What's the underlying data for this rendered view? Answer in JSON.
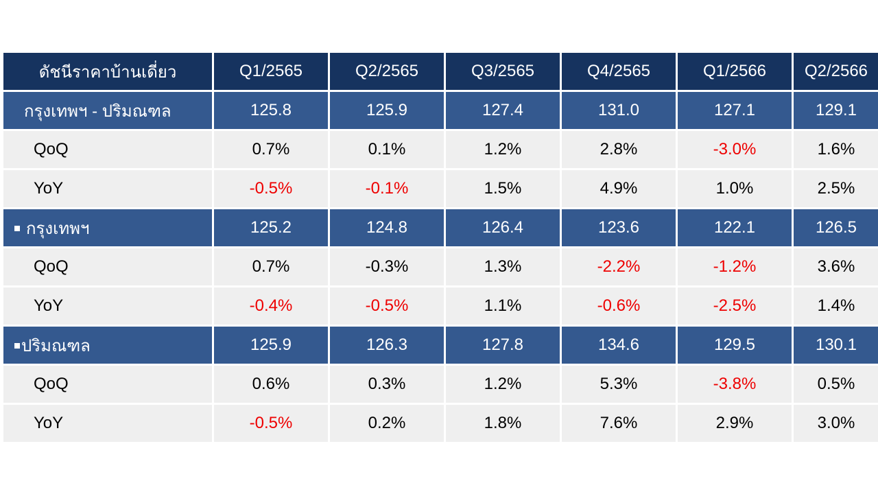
{
  "table": {
    "header": [
      "ดัชนีราคาบ้านเดี่ยว",
      "Q1/2565",
      "Q2/2565",
      "Q3/2565",
      "Q4/2565",
      "Q1/2566",
      "Q2/2566"
    ],
    "sections": [
      {
        "label": "กรุงเทพฯ - ปริมณฑล",
        "bullet": false,
        "values": [
          "125.8",
          "125.9",
          "127.4",
          "131.0",
          "127.1",
          "129.1"
        ],
        "rows": [
          {
            "label": "QoQ",
            "values": [
              "0.7%",
              "0.1%",
              "1.2%",
              "2.8%",
              "-3.0%",
              "1.6%"
            ]
          },
          {
            "label": "YoY",
            "values": [
              "-0.5%",
              "-0.1%",
              "1.5%",
              "4.9%",
              "1.0%",
              "2.5%"
            ]
          }
        ]
      },
      {
        "label": "กรุงเทพฯ",
        "bullet": true,
        "values": [
          "125.2",
          "124.8",
          "126.4",
          "123.6",
          "122.1",
          "126.5"
        ],
        "rows": [
          {
            "label": "QoQ",
            "values": [
              "0.7%",
              "-0.3%",
              "1.3%",
              "-2.2%",
              "-1.2%",
              "3.6%"
            ]
          },
          {
            "label": "YoY",
            "values": [
              "-0.4%",
              "-0.5%",
              "1.1%",
              "-0.6%",
              "-2.5%",
              "1.4%"
            ]
          }
        ]
      },
      {
        "label": "ปริมณฑล",
        "bullet": true,
        "values": [
          "125.9",
          "126.3",
          "127.8",
          "134.6",
          "129.5",
          "130.1"
        ],
        "rows": [
          {
            "label": "QoQ",
            "values": [
              "0.6%",
              "0.3%",
              "1.2%",
              "5.3%",
              "-3.8%",
              "0.5%"
            ]
          },
          {
            "label": "YoY",
            "values": [
              "-0.5%",
              "0.2%",
              "1.8%",
              "7.6%",
              "2.9%",
              "3.0%"
            ]
          }
        ]
      }
    ],
    "red_values": [
      [
        [],
        [
          "Q1/2566"
        ],
        [
          "Q1/2565",
          "Q2/2565"
        ]
      ],
      [
        [],
        [
          "Q4/2565",
          "Q1/2566"
        ],
        [
          "Q1/2565",
          "Q2/2565",
          "Q4/2565",
          "Q1/2566"
        ]
      ],
      [
        [],
        [
          "Q1/2566"
        ],
        [
          "Q1/2565"
        ]
      ]
    ]
  },
  "colors": {
    "header_bg": "#16335f",
    "section_bg": "#34598f",
    "row_bg": "#efefef",
    "negative_text": "#ee0000"
  }
}
